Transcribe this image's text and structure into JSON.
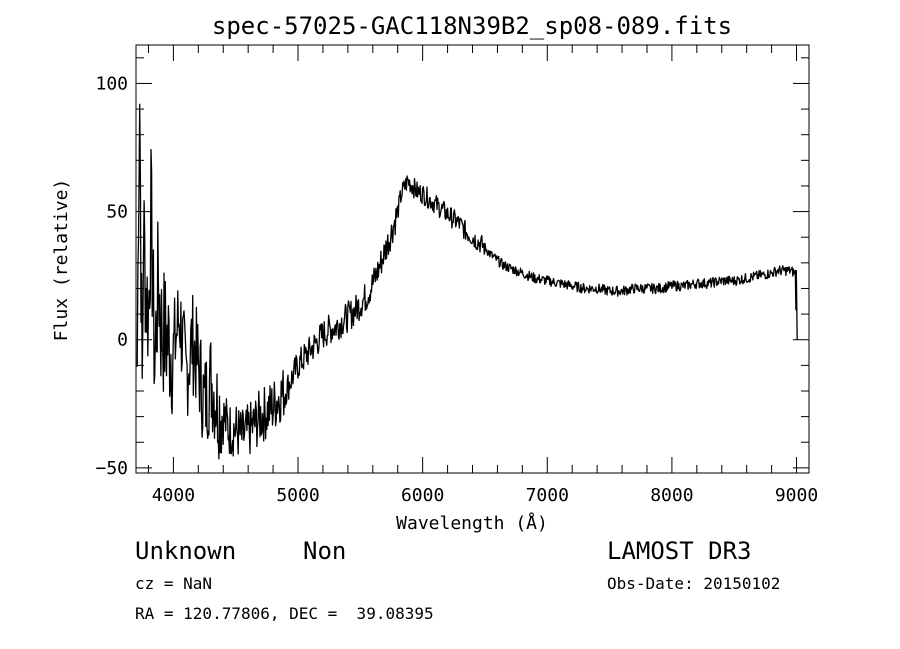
{
  "chart_data": {
    "type": "line",
    "title": "spec-57025-GAC118N39B2_sp08-089.fits",
    "xlabel": "Wavelength (Å)",
    "ylabel": "Flux (relative)",
    "xlim": [
      3700,
      9100
    ],
    "ylim": [
      -52,
      115
    ],
    "xticks": [
      4000,
      5000,
      6000,
      7000,
      8000,
      9000
    ],
    "yticks": [
      -50,
      0,
      50,
      100
    ],
    "grid": false,
    "series": [
      {
        "x": [
          3710,
          3720,
          3730,
          3740,
          3750,
          3760,
          3780,
          3800,
          3820,
          3850,
          3880,
          3900,
          3950,
          4000,
          4050,
          4100,
          4150,
          4200,
          4250,
          4300,
          4350,
          4400,
          4450,
          4500,
          4550,
          4600,
          4650,
          4700,
          4750,
          4800,
          4850,
          4900,
          4950,
          5000,
          5050,
          5100,
          5150,
          5200,
          5250,
          5300,
          5350,
          5400,
          5450,
          5500,
          5550,
          5600,
          5650,
          5700,
          5750,
          5800,
          5830,
          5860,
          5880,
          5900,
          5920,
          5950,
          6000,
          6050,
          6100,
          6150,
          6200,
          6250,
          6300,
          6350,
          6400,
          6450,
          6500,
          6550,
          6600,
          6650,
          6700,
          6750,
          6800,
          6900,
          7000,
          7100,
          7200,
          7300,
          7400,
          7500,
          7600,
          7700,
          7800,
          7900,
          8000,
          8100,
          8200,
          8300,
          8400,
          8500,
          8600,
          8700,
          8800,
          8850,
          8900,
          8950,
          8990,
          9000,
          9005
        ],
        "y": [
          -10,
          60,
          95,
          30,
          -20,
          45,
          20,
          10,
          50,
          -10,
          25,
          5,
          0,
          -5,
          10,
          -15,
          0,
          -10,
          -25,
          -15,
          -25,
          -30,
          -35,
          -35,
          -38,
          -36,
          -33,
          -30,
          -28,
          -26,
          -22,
          -20,
          -15,
          -10,
          -7,
          -4,
          -1,
          2,
          4,
          5,
          7,
          9,
          11,
          14,
          17,
          22,
          28,
          35,
          42,
          50,
          57,
          60,
          62,
          61,
          60,
          58,
          57,
          55,
          53,
          51,
          49,
          47,
          45,
          42,
          40,
          38,
          36,
          33,
          31,
          29,
          28,
          27,
          26,
          24,
          23,
          22,
          21,
          20,
          20,
          19,
          19,
          20,
          20,
          20,
          21,
          21,
          22,
          22,
          23,
          23,
          24,
          25,
          26,
          27,
          27,
          27,
          26,
          0,
          0
        ]
      }
    ]
  },
  "info": {
    "object_class": "Unknown",
    "subclass": "Non",
    "survey": "LAMOST DR3",
    "cz": "cz = NaN",
    "obs_date": "Obs-Date: 20150102",
    "coords": "RA = 120.77806, DEC =  39.08395"
  }
}
